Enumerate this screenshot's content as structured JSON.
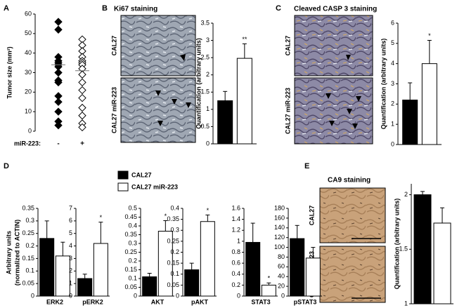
{
  "panel_labels": [
    "A",
    "B",
    "C",
    "D",
    "E"
  ],
  "images": [
    {
      "title": "Ki67 staining",
      "rows": [
        "CAL27",
        "CAL27  miR-223"
      ]
    },
    {
      "title": "Cleaved CASP 3 staining",
      "rows": [
        "CAL27",
        "CAL27  miR-223"
      ]
    },
    {
      "title": "CA9 staining",
      "rows": [
        "CAL27",
        "CAL27  miR-223"
      ]
    }
  ],
  "chart_data": [
    {
      "type": "strip",
      "ylabel": "Tumor size (mm²)",
      "xlabel": "miR-223:",
      "categories": [
        "-",
        "+"
      ],
      "ylim": [
        0,
        60
      ],
      "yticks": [
        0,
        10,
        20,
        30,
        40,
        50,
        60
      ],
      "series": [
        {
          "color": "#000000",
          "fill": "#000000",
          "values": [
            56,
            52,
            38,
            36,
            35,
            34,
            33,
            30,
            26,
            25,
            18,
            15,
            10,
            5,
            3
          ]
        },
        {
          "color": "#000000",
          "fill": "#ffffff",
          "values": [
            47,
            44,
            41,
            38,
            36,
            35,
            34,
            32,
            29,
            25,
            21,
            17,
            12,
            8,
            4,
            2
          ]
        }
      ],
      "means": [
        34,
        31
      ]
    },
    {
      "type": "bar",
      "ylabel": "Quantification (arbitrary units)",
      "ylim": [
        0,
        3.5
      ],
      "yticks": [
        0,
        0.5,
        1,
        1.5,
        2,
        2.5,
        3,
        3.5
      ],
      "values": [
        1.25,
        2.48
      ],
      "errors": [
        0.27,
        0.42
      ],
      "colors": [
        "#000000",
        "#ffffff"
      ],
      "significance": [
        null,
        "**"
      ]
    },
    {
      "type": "bar",
      "ylabel": "Quantification (arbitrary units)",
      "ylim": [
        0,
        6
      ],
      "yticks": [
        0,
        1,
        2,
        3,
        4,
        5,
        6
      ],
      "values": [
        2.2,
        4.0
      ],
      "errors": [
        0.85,
        1.15
      ],
      "colors": [
        "#000000",
        "#ffffff"
      ],
      "significance": [
        null,
        "*"
      ]
    },
    {
      "type": "bar",
      "ylabel": [
        "Arbitrary units",
        "(normalized to ACTIN)"
      ],
      "series": [
        {
          "name": "CAL27",
          "color": "#000000"
        },
        {
          "name": "CAL27 miR-223",
          "color": "#ffffff"
        }
      ],
      "subplots": [
        {
          "category": "ERK2",
          "ylim": [
            0,
            0.35
          ],
          "yticks": [
            0,
            0.05,
            0.1,
            0.15,
            0.2,
            0.25,
            0.3,
            0.35
          ],
          "values": [
            0.23,
            0.16
          ],
          "errors": [
            0.07,
            0.055
          ],
          "significance": [
            null,
            null
          ]
        },
        {
          "category": "pERK2",
          "ylim": [
            0,
            7
          ],
          "yticks": [
            0,
            1,
            2,
            3,
            4,
            5,
            6,
            7
          ],
          "values": [
            1.4,
            4.2
          ],
          "errors": [
            0.35,
            1.7
          ],
          "significance": [
            null,
            "*"
          ]
        },
        {
          "category": "AKT",
          "ylim": [
            0,
            0.5
          ],
          "yticks": [
            0,
            0.05,
            0.1,
            0.15,
            0.2,
            0.25,
            0.3,
            0.35,
            0.4,
            0.45,
            0.5
          ],
          "values": [
            0.11,
            0.37
          ],
          "errors": [
            0.02,
            0.06
          ],
          "significance": [
            null,
            "*"
          ]
        },
        {
          "category": "pAKT",
          "ylim": [
            0,
            0.4
          ],
          "yticks": [
            0,
            0.05,
            0.1,
            0.15,
            0.2,
            0.25,
            0.3,
            0.35,
            0.4
          ],
          "values": [
            0.12,
            0.34
          ],
          "errors": [
            0.03,
            0.03
          ],
          "significance": [
            null,
            "*"
          ]
        },
        {
          "category": "STAT3",
          "ylim": [
            0,
            1.6
          ],
          "yticks": [
            0,
            0.2,
            0.4,
            0.6,
            0.8,
            1,
            1.2,
            1.4,
            1.6
          ],
          "values": [
            0.98,
            0.2
          ],
          "errors": [
            0.35,
            0.04
          ],
          "significance": [
            null,
            "*"
          ]
        },
        {
          "category": "pSTAT3",
          "ylim": [
            0,
            180
          ],
          "yticks": [
            0,
            20,
            40,
            60,
            80,
            100,
            120,
            140,
            160,
            180
          ],
          "values": [
            118,
            78
          ],
          "errors": [
            27,
            22
          ],
          "significance": [
            null,
            null
          ]
        }
      ]
    },
    {
      "type": "bar",
      "ylabel": "Quantification (arbitrary units)",
      "ylim": [
        1,
        2.1
      ],
      "yticks": [
        1,
        1.5,
        2
      ],
      "values": [
        2.0,
        1.74
      ],
      "errors": [
        0.03,
        0.14
      ],
      "colors": [
        "#000000",
        "#ffffff"
      ],
      "significance": [
        null,
        null
      ]
    }
  ]
}
